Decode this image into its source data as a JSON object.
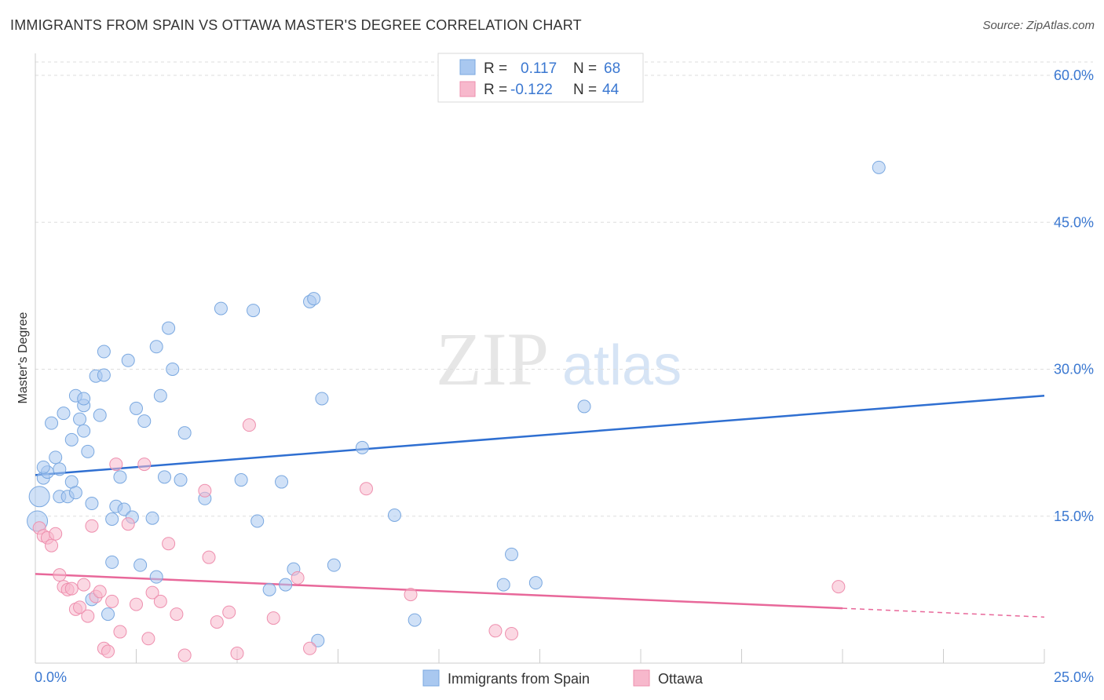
{
  "header": {
    "title": "IMMIGRANTS FROM SPAIN VS OTTAWA MASTER'S DEGREE CORRELATION CHART",
    "source": "Source: ZipAtlas.com"
  },
  "watermark": {
    "zip": "ZIP",
    "atlas": "atlas"
  },
  "legend_top": [
    {
      "r_label": "R =",
      "r_value": "0.117",
      "n_label": "N =",
      "n_value": "68",
      "color": "#a9c8f0"
    },
    {
      "r_label": "R =",
      "r_value": "-0.122",
      "n_label": "N =",
      "n_value": "44",
      "color": "#f7b8cc"
    }
  ],
  "chart_data": {
    "type": "scatter",
    "title": "IMMIGRANTS FROM SPAIN VS OTTAWA MASTER'S DEGREE CORRELATION CHART",
    "xlabel": "",
    "ylabel": "Master's Degree",
    "xlim": [
      0,
      25
    ],
    "ylim": [
      0,
      60
    ],
    "x_tick_labels": [
      "0.0%",
      "25.0%"
    ],
    "y_ticks": [
      15,
      30,
      45,
      60
    ],
    "y_tick_labels": [
      "15.0%",
      "30.0%",
      "45.0%",
      "60.0%"
    ],
    "grid": true,
    "legend_position": "top-center",
    "series": [
      {
        "name": "Immigrants from Spain",
        "color": "#a9c8f0",
        "stroke": "#7aa8e0",
        "trend_color": "#2f6fd1",
        "trend": {
          "x": [
            0,
            25
          ],
          "y": [
            19.2,
            27.3
          ]
        },
        "points": [
          [
            0.2,
            18.9
          ],
          [
            0.3,
            19.5
          ],
          [
            0.2,
            20.0
          ],
          [
            0.4,
            24.5
          ],
          [
            0.5,
            21.0
          ],
          [
            0.6,
            19.8
          ],
          [
            0.6,
            17.0
          ],
          [
            0.7,
            25.5
          ],
          [
            0.8,
            17.0
          ],
          [
            0.9,
            18.5
          ],
          [
            0.9,
            22.8
          ],
          [
            1.0,
            17.4
          ],
          [
            1.0,
            27.3
          ],
          [
            1.1,
            24.9
          ],
          [
            1.2,
            26.3
          ],
          [
            1.2,
            23.7
          ],
          [
            1.2,
            27.0
          ],
          [
            1.3,
            21.6
          ],
          [
            1.4,
            16.3
          ],
          [
            1.5,
            29.3
          ],
          [
            1.6,
            25.3
          ],
          [
            1.7,
            31.8
          ],
          [
            1.7,
            29.4
          ],
          [
            1.9,
            14.7
          ],
          [
            1.9,
            10.3
          ],
          [
            2.0,
            16.0
          ],
          [
            2.1,
            19.0
          ],
          [
            2.2,
            15.7
          ],
          [
            2.3,
            30.9
          ],
          [
            2.4,
            14.9
          ],
          [
            2.5,
            26.0
          ],
          [
            2.6,
            10.0
          ],
          [
            2.7,
            24.7
          ],
          [
            2.9,
            14.8
          ],
          [
            3.0,
            32.3
          ],
          [
            3.1,
            27.3
          ],
          [
            3.2,
            19.0
          ],
          [
            3.3,
            34.2
          ],
          [
            3.4,
            30.0
          ],
          [
            3.6,
            18.7
          ],
          [
            3.7,
            23.5
          ],
          [
            4.2,
            16.8
          ],
          [
            4.6,
            36.2
          ],
          [
            5.1,
            18.7
          ],
          [
            5.4,
            36.0
          ],
          [
            5.5,
            14.5
          ],
          [
            5.8,
            7.5
          ],
          [
            6.1,
            18.5
          ],
          [
            6.2,
            8.0
          ],
          [
            6.4,
            9.6
          ],
          [
            6.8,
            36.9
          ],
          [
            6.9,
            37.2
          ],
          [
            7.1,
            27.0
          ],
          [
            7.4,
            10.0
          ],
          [
            8.1,
            22.0
          ],
          [
            8.9,
            15.1
          ],
          [
            9.4,
            4.4
          ],
          [
            11.6,
            8.0
          ],
          [
            11.8,
            11.1
          ],
          [
            12.4,
            8.2
          ],
          [
            13.6,
            26.2
          ],
          [
            20.9,
            50.6
          ],
          [
            0.1,
            17.0
          ],
          [
            0.05,
            14.5
          ],
          [
            1.4,
            6.5
          ],
          [
            1.8,
            5.0
          ],
          [
            3.0,
            8.8
          ],
          [
            7.0,
            2.3
          ]
        ]
      },
      {
        "name": "Ottawa",
        "color": "#f7b8cc",
        "stroke": "#ee8fae",
        "trend_color": "#e8689a",
        "trend": {
          "x": [
            0,
            20
          ],
          "y": [
            9.1,
            5.6
          ]
        },
        "trend_dashed": {
          "x": [
            20,
            25
          ],
          "y": [
            5.6,
            4.7
          ]
        },
        "points": [
          [
            0.1,
            13.8
          ],
          [
            0.2,
            13.0
          ],
          [
            0.3,
            12.8
          ],
          [
            0.4,
            12.0
          ],
          [
            0.5,
            13.2
          ],
          [
            0.6,
            9.0
          ],
          [
            0.7,
            7.8
          ],
          [
            0.8,
            7.5
          ],
          [
            0.9,
            7.6
          ],
          [
            1.0,
            5.5
          ],
          [
            1.1,
            5.7
          ],
          [
            1.2,
            8.0
          ],
          [
            1.3,
            4.8
          ],
          [
            1.4,
            14.0
          ],
          [
            1.5,
            6.8
          ],
          [
            1.6,
            7.3
          ],
          [
            1.7,
            1.5
          ],
          [
            1.8,
            1.2
          ],
          [
            1.9,
            6.3
          ],
          [
            2.0,
            20.3
          ],
          [
            2.1,
            3.2
          ],
          [
            2.3,
            14.2
          ],
          [
            2.5,
            6.0
          ],
          [
            2.7,
            20.3
          ],
          [
            2.8,
            2.5
          ],
          [
            2.9,
            7.2
          ],
          [
            3.1,
            6.3
          ],
          [
            3.3,
            12.2
          ],
          [
            3.5,
            5.0
          ],
          [
            3.7,
            0.8
          ],
          [
            4.2,
            17.6
          ],
          [
            4.3,
            10.8
          ],
          [
            4.5,
            4.2
          ],
          [
            4.8,
            5.2
          ],
          [
            5.0,
            1.0
          ],
          [
            5.3,
            24.3
          ],
          [
            5.9,
            4.6
          ],
          [
            6.5,
            8.7
          ],
          [
            6.8,
            1.5
          ],
          [
            8.2,
            17.8
          ],
          [
            9.3,
            7.0
          ],
          [
            11.4,
            3.3
          ],
          [
            11.8,
            3.0
          ],
          [
            19.9,
            7.8
          ]
        ]
      }
    ]
  }
}
